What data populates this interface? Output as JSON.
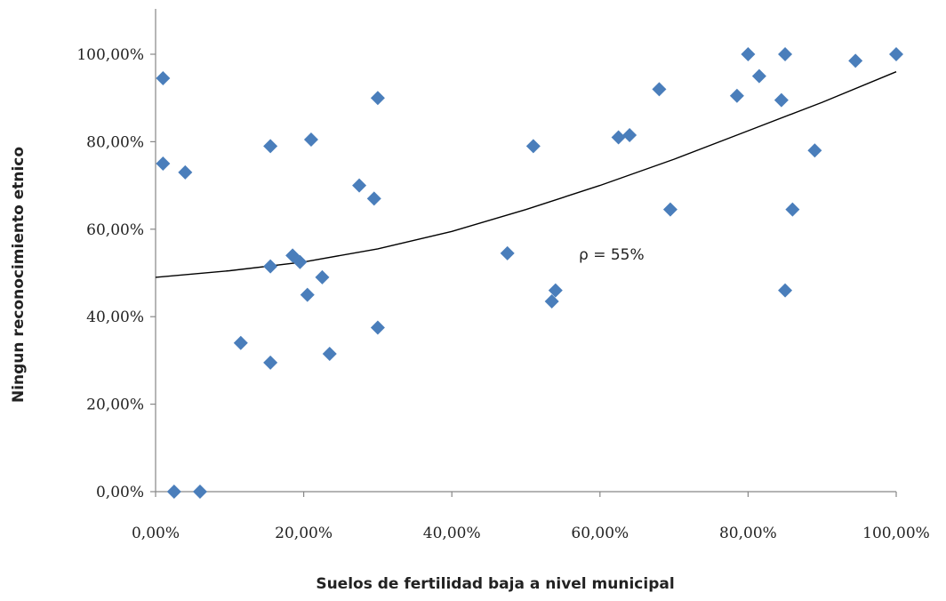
{
  "chart_data": {
    "type": "scatter",
    "xlabel": "Suelos de fertilidad baja a nivel municipal",
    "ylabel": "Ningun reconocimiento etnico",
    "xlim": [
      0,
      100
    ],
    "ylim": [
      0,
      100
    ],
    "x_ticks": [
      "0,00%",
      "20,00%",
      "40,00%",
      "60,00%",
      "80,00%",
      "100,00%"
    ],
    "y_ticks": [
      "0,00%",
      "20,00%",
      "40,00%",
      "60,00%",
      "80,00%",
      "100,00%"
    ],
    "grid": false,
    "marker_color": "#4a7ebb",
    "trendline_color": "#000000",
    "annotation": "ρ = 55%",
    "points": [
      [
        1,
        94.5
      ],
      [
        1,
        75
      ],
      [
        2.5,
        0
      ],
      [
        4,
        73
      ],
      [
        6,
        0
      ],
      [
        11.5,
        34
      ],
      [
        15.5,
        51.5
      ],
      [
        15.5,
        79
      ],
      [
        15.5,
        29.5
      ],
      [
        18.5,
        54
      ],
      [
        19.5,
        52.5
      ],
      [
        20.5,
        45
      ],
      [
        21,
        80.5
      ],
      [
        22.5,
        49
      ],
      [
        23.5,
        31.5
      ],
      [
        27.5,
        70
      ],
      [
        29.5,
        67
      ],
      [
        30,
        90
      ],
      [
        30,
        37.5
      ],
      [
        47.5,
        54.5
      ],
      [
        51,
        79
      ],
      [
        53.5,
        43.5
      ],
      [
        54,
        46
      ],
      [
        62.5,
        81
      ],
      [
        64,
        81.5
      ],
      [
        68,
        92
      ],
      [
        69.5,
        64.5
      ],
      [
        78.5,
        90.5
      ],
      [
        80,
        100
      ],
      [
        81.5,
        95
      ],
      [
        84.5,
        89.5
      ],
      [
        85,
        100
      ],
      [
        85,
        46
      ],
      [
        86,
        64.5
      ],
      [
        89,
        78
      ],
      [
        94.5,
        98.5
      ],
      [
        100,
        100
      ]
    ],
    "trendline": [
      [
        0,
        49
      ],
      [
        10,
        50.5
      ],
      [
        20,
        52.5
      ],
      [
        30,
        55.5
      ],
      [
        40,
        59.5
      ],
      [
        50,
        64.5
      ],
      [
        60,
        70
      ],
      [
        70,
        76
      ],
      [
        80,
        82.5
      ],
      [
        90,
        89
      ],
      [
        100,
        96
      ]
    ]
  }
}
